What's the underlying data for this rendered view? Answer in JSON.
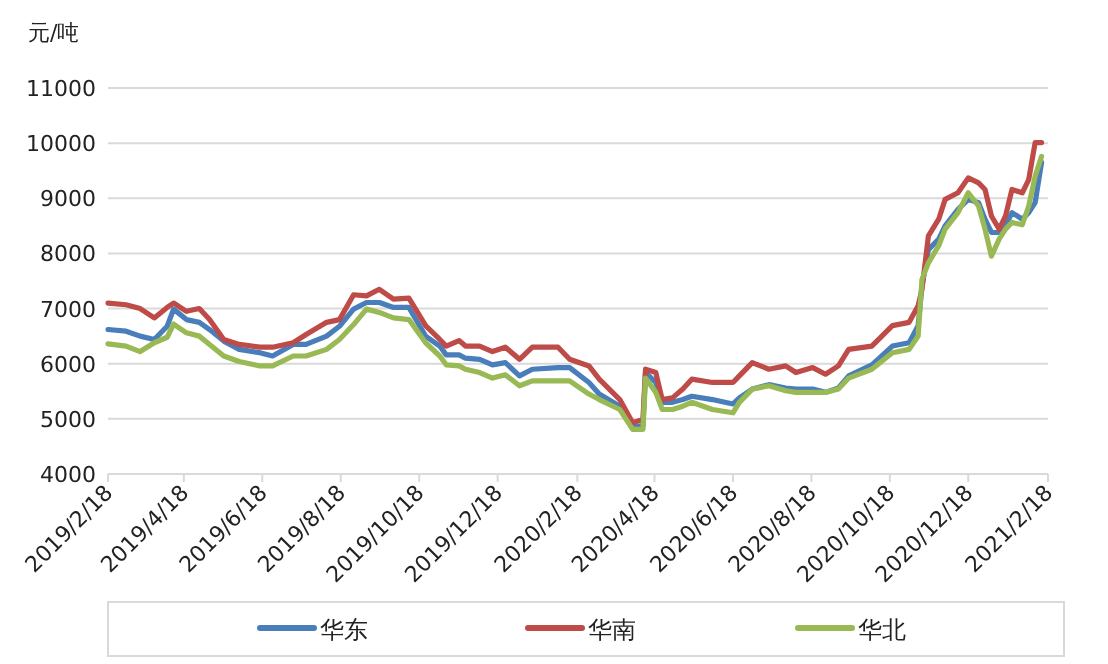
{
  "chart_data": {
    "type": "line",
    "ylabel": "元/吨",
    "grid": "y",
    "legend": "bottom",
    "x": [
      "2019-02-18",
      "2019-03-04",
      "2019-03-15",
      "2019-03-26",
      "2019-04-05",
      "2019-04-10",
      "2019-04-20",
      "2019-04-30",
      "2019-05-08",
      "2019-05-19",
      "2019-05-31",
      "2019-06-16",
      "2019-06-26",
      "2019-07-12",
      "2019-07-22",
      "2019-08-07",
      "2019-08-17",
      "2019-08-28",
      "2019-09-07",
      "2019-09-17",
      "2019-09-28",
      "2019-10-10",
      "2019-10-23",
      "2019-11-03",
      "2019-11-08",
      "2019-11-18",
      "2019-11-23",
      "2019-12-04",
      "2019-12-14",
      "2019-12-24",
      "2020-01-04",
      "2020-01-14",
      "2020-02-03",
      "2020-02-12",
      "2020-02-27",
      "2020-03-06",
      "2020-03-22",
      "2020-04-01",
      "2020-04-09",
      "2020-04-11",
      "2020-04-19",
      "2020-04-24",
      "2020-05-02",
      "2020-05-10",
      "2020-05-17",
      "2020-06-02",
      "2020-06-18",
      "2020-06-23",
      "2020-07-03",
      "2020-07-16",
      "2020-07-29",
      "2020-08-06",
      "2020-08-19",
      "2020-08-29",
      "2020-09-08",
      "2020-09-16",
      "2020-10-04",
      "2020-10-20",
      "2020-11-02",
      "2020-11-09",
      "2020-11-12",
      "2020-11-17",
      "2020-11-25",
      "2020-11-30",
      "2020-12-10",
      "2020-12-18",
      "2020-12-26",
      "2020-12-31",
      "2021-01-05",
      "2021-01-11",
      "2021-01-16",
      "2021-01-21",
      "2021-01-29",
      "2021-02-03",
      "2021-02-08",
      "2021-02-13"
    ],
    "series": [
      {
        "name": "华东",
        "color": "#4a7ebb",
        "values": [
          6620,
          6590,
          6500,
          6440,
          6680,
          6990,
          6800,
          6750,
          6620,
          6410,
          6260,
          6200,
          6140,
          6350,
          6350,
          6500,
          6680,
          6990,
          7110,
          7110,
          7020,
          7020,
          6500,
          6320,
          6160,
          6160,
          6100,
          6080,
          5980,
          6020,
          5780,
          5900,
          5930,
          5930,
          5660,
          5450,
          5230,
          4870,
          4870,
          5840,
          5660,
          5300,
          5300,
          5350,
          5410,
          5350,
          5270,
          5380,
          5540,
          5620,
          5560,
          5540,
          5540,
          5480,
          5560,
          5780,
          5980,
          6320,
          6380,
          6690,
          7410,
          8070,
          8260,
          8500,
          8800,
          8980,
          8920,
          8620,
          8380,
          8380,
          8500,
          8740,
          8620,
          8740,
          8920,
          9650
        ]
      },
      {
        "name": "华南",
        "color": "#be4b48",
        "values": [
          7100,
          7070,
          7000,
          6830,
          7020,
          7100,
          6950,
          7000,
          6800,
          6440,
          6350,
          6300,
          6300,
          6380,
          6530,
          6750,
          6800,
          7250,
          7230,
          7350,
          7170,
          7190,
          6690,
          6440,
          6320,
          6420,
          6320,
          6320,
          6220,
          6300,
          6080,
          6300,
          6300,
          6080,
          5960,
          5720,
          5350,
          4930,
          4990,
          5900,
          5840,
          5350,
          5380,
          5540,
          5720,
          5660,
          5660,
          5780,
          6020,
          5900,
          5960,
          5840,
          5930,
          5810,
          5960,
          6260,
          6320,
          6690,
          6750,
          7050,
          7350,
          8320,
          8620,
          8980,
          9100,
          9370,
          9280,
          9160,
          8680,
          8440,
          8680,
          9160,
          9100,
          9340,
          10010,
          10010
        ]
      },
      {
        "name": "华北",
        "color": "#98b954",
        "values": [
          6360,
          6320,
          6220,
          6380,
          6480,
          6720,
          6560,
          6500,
          6350,
          6140,
          6040,
          5960,
          5960,
          6140,
          6140,
          6260,
          6440,
          6710,
          6990,
          6930,
          6830,
          6800,
          6380,
          6140,
          5980,
          5960,
          5900,
          5840,
          5740,
          5800,
          5600,
          5690,
          5690,
          5690,
          5450,
          5350,
          5170,
          4810,
          4810,
          5740,
          5480,
          5170,
          5170,
          5230,
          5300,
          5170,
          5110,
          5300,
          5540,
          5600,
          5510,
          5480,
          5480,
          5480,
          5540,
          5740,
          5900,
          6200,
          6260,
          6500,
          7530,
          7830,
          8140,
          8440,
          8740,
          9100,
          8860,
          8440,
          7950,
          8260,
          8440,
          8560,
          8520,
          8860,
          9400,
          9760
        ]
      }
    ],
    "xlim": [
      "2019-02-18",
      "2021-02-18"
    ],
    "xticks": [
      {
        "value": "2019-02-18",
        "label": "2019/2/18"
      },
      {
        "value": "2019-04-18",
        "label": "2019/4/18"
      },
      {
        "value": "2019-06-18",
        "label": "2019/6/18"
      },
      {
        "value": "2019-08-18",
        "label": "2019/8/18"
      },
      {
        "value": "2019-10-18",
        "label": "2019/10/18"
      },
      {
        "value": "2019-12-18",
        "label": "2019/12/18"
      },
      {
        "value": "2020-02-18",
        "label": "2020/2/18"
      },
      {
        "value": "2020-04-18",
        "label": "2020/4/18"
      },
      {
        "value": "2020-06-18",
        "label": "2020/6/18"
      },
      {
        "value": "2020-08-18",
        "label": "2020/8/18"
      },
      {
        "value": "2020-10-18",
        "label": "2020/10/18"
      },
      {
        "value": "2020-12-18",
        "label": "2020/12/18"
      },
      {
        "value": "2021-02-18",
        "label": "2021/2/18"
      }
    ],
    "ylim": [
      4000,
      11000
    ],
    "yticks": [
      4000,
      5000,
      6000,
      7000,
      8000,
      9000,
      10000,
      11000
    ]
  }
}
